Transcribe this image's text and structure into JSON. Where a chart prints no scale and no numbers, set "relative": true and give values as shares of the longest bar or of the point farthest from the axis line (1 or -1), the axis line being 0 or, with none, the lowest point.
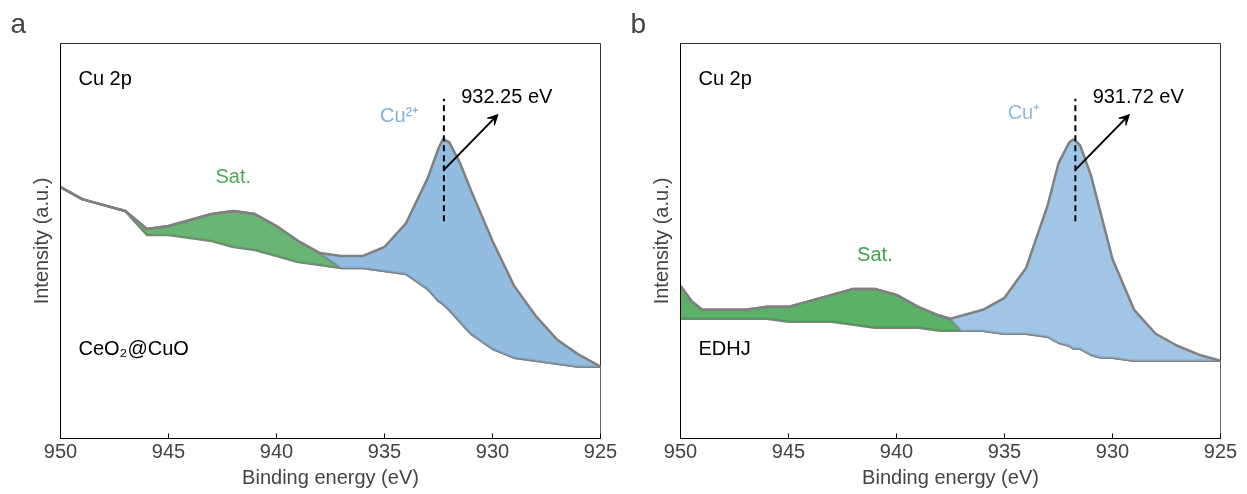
{
  "chart_data": [
    {
      "type": "area",
      "title": "a",
      "subtitle": "Cu 2p",
      "xlabel": "Binding energy (eV)",
      "ylabel": "Intensity (a.u.)",
      "relative": true,
      "stacked": true,
      "tick_labels": "x",
      "grid": false,
      "line_style": "solid",
      "xlim": [
        950,
        925
      ],
      "xticks": [
        950,
        945,
        940,
        935,
        930,
        925
      ],
      "x": [
        950,
        949,
        948,
        947,
        946,
        945,
        944,
        943,
        942,
        941,
        940,
        939,
        938,
        937,
        936,
        935,
        934,
        933,
        932.5,
        932.3,
        932,
        931.5,
        931,
        930,
        929,
        928,
        927,
        926,
        925
      ],
      "series": [
        {
          "color": "#ffffff",
          "values": [
            0.84,
            0.8,
            0.78,
            0.76,
            0.68,
            0.68,
            0.67,
            0.66,
            0.64,
            0.63,
            0.61,
            0.59,
            0.58,
            0.57,
            0.57,
            0.56,
            0.55,
            0.5,
            0.46,
            0.45,
            0.43,
            0.39,
            0.35,
            0.3,
            0.27,
            0.26,
            0.25,
            0.24,
            0.24
          ]
        },
        {
          "color": "#4fa85a",
          "values": [
            0,
            0,
            0,
            0,
            0.02,
            0.03,
            0.06,
            0.09,
            0.12,
            0.12,
            0.1,
            0.07,
            0.04,
            0,
            0,
            0,
            0,
            0,
            0,
            0,
            0,
            0,
            0,
            0,
            0,
            0,
            0,
            0,
            0
          ]
        },
        {
          "color": "#7fb0da",
          "values": [
            0,
            0,
            0,
            0,
            0,
            0,
            0,
            0,
            0,
            0,
            0,
            0,
            0,
            0.04,
            0.04,
            0.08,
            0.17,
            0.37,
            0.51,
            0.55,
            0.56,
            0.53,
            0.48,
            0.36,
            0.24,
            0.15,
            0.08,
            0.04,
            0
          ]
        }
      ],
      "ref_lines": [
        {
          "axis": "x",
          "value": 932.25,
          "label": "932.25 eV",
          "color": "#000000",
          "line_style": "dashed"
        }
      ],
      "annotations": [
        "Sat.",
        "Cu²⁺",
        "CeO₂@CuO"
      ]
    },
    {
      "type": "area",
      "title": "b",
      "subtitle": "Cu 2p",
      "xlabel": "Binding energy (eV)",
      "ylabel": "Intensity (a.u.)",
      "relative": true,
      "stacked": true,
      "tick_labels": "x",
      "grid": false,
      "line_style": "solid",
      "xlim": [
        950,
        925
      ],
      "xticks": [
        950,
        945,
        940,
        935,
        930,
        925
      ],
      "x": [
        950,
        949.5,
        949,
        948,
        947,
        946,
        945,
        944,
        943,
        942,
        941,
        940,
        939,
        938,
        937.5,
        937,
        936,
        935,
        934,
        933,
        932.5,
        932,
        931.8,
        931.5,
        931,
        930.5,
        930,
        929,
        928,
        927,
        926,
        925
      ],
      "series": [
        {
          "color": "#ffffff",
          "values": [
            0.4,
            0.4,
            0.4,
            0.4,
            0.4,
            0.4,
            0.39,
            0.39,
            0.39,
            0.38,
            0.37,
            0.37,
            0.37,
            0.36,
            0.36,
            0.36,
            0.36,
            0.35,
            0.35,
            0.34,
            0.32,
            0.31,
            0.3,
            0.3,
            0.28,
            0.27,
            0.27,
            0.26,
            0.26,
            0.26,
            0.26,
            0.26
          ]
        },
        {
          "color": "#3fa34d",
          "values": [
            0.11,
            0.06,
            0.03,
            0.03,
            0.03,
            0.04,
            0.05,
            0.07,
            0.09,
            0.12,
            0.13,
            0.11,
            0.07,
            0.05,
            0.04,
            0,
            0,
            0,
            0,
            0,
            0,
            0,
            0,
            0,
            0,
            0,
            0,
            0,
            0,
            0,
            0,
            0
          ]
        },
        {
          "color": "#8fbbe0",
          "values": [
            0,
            0,
            0,
            0,
            0,
            0,
            0,
            0,
            0,
            0,
            0,
            0,
            0,
            0,
            0,
            0.05,
            0.07,
            0.12,
            0.22,
            0.44,
            0.6,
            0.68,
            0.7,
            0.68,
            0.6,
            0.47,
            0.33,
            0.17,
            0.09,
            0.05,
            0.02,
            0
          ]
        }
      ],
      "ref_lines": [
        {
          "axis": "x",
          "value": 931.72,
          "label": "931.72 eV",
          "color": "#000000",
          "line_style": "dashed"
        }
      ],
      "annotations": [
        "Sat.",
        "Cu⁺",
        "EDHJ"
      ]
    }
  ]
}
